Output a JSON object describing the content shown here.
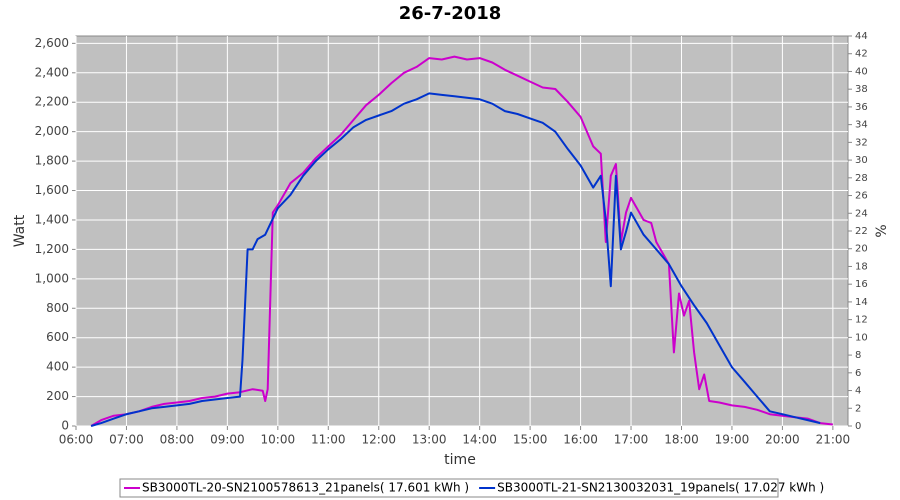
{
  "chart_data": {
    "type": "line",
    "title": "26-7-2018",
    "x_label": "time",
    "y_label": "Watt",
    "y2_label": "%",
    "grid": true,
    "legend": "bottom",
    "xlim": [
      6,
      21.3
    ],
    "xticks": [
      {
        "value": 6,
        "label": "06:00"
      },
      {
        "value": 7,
        "label": "07:00"
      },
      {
        "value": 8,
        "label": "08:00"
      },
      {
        "value": 9,
        "label": "09:00"
      },
      {
        "value": 10,
        "label": "10:00"
      },
      {
        "value": 11,
        "label": "11:00"
      },
      {
        "value": 12,
        "label": "12:00"
      },
      {
        "value": 13,
        "label": "13:00"
      },
      {
        "value": 14,
        "label": "14:00"
      },
      {
        "value": 15,
        "label": "15:00"
      },
      {
        "value": 16,
        "label": "16:00"
      },
      {
        "value": 17,
        "label": "17:00"
      },
      {
        "value": 18,
        "label": "18:00"
      },
      {
        "value": 19,
        "label": "19:00"
      },
      {
        "value": 20,
        "label": "20:00"
      },
      {
        "value": 21,
        "label": "21:00"
      }
    ],
    "ylim": [
      0,
      2650
    ],
    "yticks": [
      0,
      200,
      400,
      600,
      800,
      {
        "value": 1000,
        "label": "1,000"
      },
      {
        "value": 1200,
        "label": "1,200"
      },
      {
        "value": 1400,
        "label": "1,400"
      },
      {
        "value": 1600,
        "label": "1,600"
      },
      {
        "value": 1800,
        "label": "1,800"
      },
      {
        "value": 2000,
        "label": "2,000"
      },
      {
        "value": 2200,
        "label": "2,200"
      },
      {
        "value": 2400,
        "label": "2,400"
      },
      {
        "value": 2600,
        "label": "2,600"
      }
    ],
    "y2lim": [
      0,
      44
    ],
    "y2ticks": [
      0,
      2,
      4,
      6,
      8,
      10,
      12,
      14,
      16,
      18,
      20,
      22,
      24,
      26,
      28,
      30,
      32,
      34,
      36,
      38,
      40,
      42,
      44
    ],
    "series": [
      {
        "name": "SB3000TL-20-SN2100578613_21panels( 17.601 kWh )",
        "color": "#cc00cc",
        "x": [
          6.3,
          6.5,
          6.75,
          7,
          7.25,
          7.5,
          7.75,
          8,
          8.25,
          8.5,
          8.75,
          9,
          9.25,
          9.5,
          9.7,
          9.75,
          9.8,
          9.9,
          10,
          10.25,
          10.5,
          10.75,
          11,
          11.25,
          11.5,
          11.75,
          12,
          12.25,
          12.5,
          12.75,
          13,
          13.25,
          13.5,
          13.75,
          14,
          14.25,
          14.5,
          14.75,
          15,
          15.25,
          15.5,
          15.75,
          16,
          16.25,
          16.4,
          16.5,
          16.6,
          16.7,
          16.8,
          16.9,
          17,
          17.25,
          17.4,
          17.5,
          17.75,
          17.85,
          17.95,
          18.05,
          18.15,
          18.25,
          18.35,
          18.45,
          18.55,
          18.75,
          19,
          19.25,
          19.5,
          19.75,
          20,
          20.25,
          20.5,
          20.75,
          21
        ],
        "values": [
          0,
          40,
          70,
          80,
          100,
          130,
          150,
          160,
          170,
          190,
          200,
          220,
          230,
          250,
          240,
          170,
          250,
          1450,
          1500,
          1650,
          1720,
          1820,
          1900,
          1980,
          2080,
          2180,
          2250,
          2330,
          2400,
          2440,
          2500,
          2490,
          2510,
          2490,
          2500,
          2470,
          2420,
          2380,
          2340,
          2300,
          2290,
          2200,
          2100,
          1900,
          1850,
          1250,
          1700,
          1780,
          1250,
          1450,
          1550,
          1400,
          1380,
          1250,
          1100,
          500,
          900,
          750,
          850,
          500,
          250,
          350,
          170,
          160,
          140,
          130,
          110,
          80,
          70,
          60,
          50,
          20,
          10
        ]
      },
      {
        "name": "SB3000TL-21-SN2130032031_19panels( 17.027 kWh )",
        "color": "#0033cc",
        "x": [
          6.3,
          6.5,
          6.75,
          7,
          7.25,
          7.5,
          7.75,
          8,
          8.25,
          8.5,
          8.75,
          9,
          9.25,
          9.3,
          9.4,
          9.5,
          9.6,
          9.75,
          10,
          10.25,
          10.5,
          10.75,
          11,
          11.25,
          11.5,
          11.75,
          12,
          12.25,
          12.5,
          12.75,
          13,
          13.25,
          13.5,
          13.75,
          14,
          14.25,
          14.5,
          14.75,
          15,
          15.25,
          15.5,
          15.75,
          16,
          16.25,
          16.4,
          16.5,
          16.6,
          16.7,
          16.8,
          16.9,
          17,
          17.25,
          17.5,
          17.75,
          18,
          18.25,
          18.5,
          18.75,
          19,
          19.25,
          19.5,
          19.75,
          20,
          20.25,
          20.5,
          20.75
        ],
        "values": [
          0,
          20,
          50,
          80,
          100,
          120,
          130,
          140,
          150,
          170,
          180,
          190,
          200,
          450,
          1200,
          1200,
          1270,
          1300,
          1480,
          1570,
          1700,
          1800,
          1880,
          1950,
          2030,
          2080,
          2110,
          2140,
          2190,
          2220,
          2260,
          2250,
          2240,
          2230,
          2220,
          2190,
          2140,
          2120,
          2090,
          2060,
          2000,
          1880,
          1770,
          1620,
          1700,
          1400,
          950,
          1700,
          1200,
          1320,
          1450,
          1300,
          1200,
          1100,
          950,
          820,
          700,
          550,
          400,
          300,
          200,
          100,
          80,
          60,
          40,
          20
        ]
      }
    ]
  }
}
